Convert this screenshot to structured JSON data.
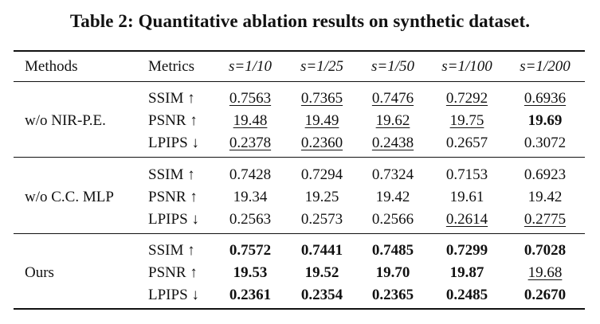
{
  "caption": "Table 2: Quantitative ablation results on synthetic dataset.",
  "header": {
    "methods": "Methods",
    "metrics": "Metrics",
    "scales": [
      "s=1/10",
      "s=1/25",
      "s=1/50",
      "s=1/100",
      "s=1/200"
    ]
  },
  "groups": [
    {
      "method": "w/o NIR-P.E.",
      "rows": [
        {
          "metric": "SSIM ↑",
          "values": [
            "0.7563",
            "0.7365",
            "0.7476",
            "0.7292",
            "0.6936"
          ],
          "style": [
            "u",
            "u",
            "u",
            "u",
            "u"
          ]
        },
        {
          "metric": "PSNR ↑",
          "values": [
            "19.48",
            "19.49",
            "19.62",
            "19.75",
            "19.69"
          ],
          "style": [
            "u",
            "u",
            "u",
            "u",
            "b"
          ]
        },
        {
          "metric": "LPIPS ↓",
          "values": [
            "0.2378",
            "0.2360",
            "0.2438",
            "0.2657",
            "0.3072"
          ],
          "style": [
            "u",
            "u",
            "u",
            "",
            ""
          ]
        }
      ]
    },
    {
      "method": "w/o C.C. MLP",
      "rows": [
        {
          "metric": "SSIM ↑",
          "values": [
            "0.7428",
            "0.7294",
            "0.7324",
            "0.7153",
            "0.6923"
          ],
          "style": [
            "",
            "",
            "",
            "",
            ""
          ]
        },
        {
          "metric": "PSNR ↑",
          "values": [
            "19.34",
            "19.25",
            "19.42",
            "19.61",
            "19.42"
          ],
          "style": [
            "",
            "",
            "",
            "",
            ""
          ]
        },
        {
          "metric": "LPIPS ↓",
          "values": [
            "0.2563",
            "0.2573",
            "0.2566",
            "0.2614",
            "0.2775"
          ],
          "style": [
            "",
            "",
            "",
            "u",
            "u"
          ]
        }
      ]
    },
    {
      "method": "Ours",
      "rows": [
        {
          "metric": "SSIM ↑",
          "values": [
            "0.7572",
            "0.7441",
            "0.7485",
            "0.7299",
            "0.7028"
          ],
          "style": [
            "b",
            "b",
            "b",
            "b",
            "b"
          ]
        },
        {
          "metric": "PSNR ↑",
          "values": [
            "19.53",
            "19.52",
            "19.70",
            "19.87",
            "19.68"
          ],
          "style": [
            "b",
            "b",
            "b",
            "b",
            "u"
          ]
        },
        {
          "metric": "LPIPS ↓",
          "values": [
            "0.2361",
            "0.2354",
            "0.2365",
            "0.2485",
            "0.2670"
          ],
          "style": [
            "b",
            "b",
            "b",
            "b",
            "b"
          ]
        }
      ]
    }
  ]
}
